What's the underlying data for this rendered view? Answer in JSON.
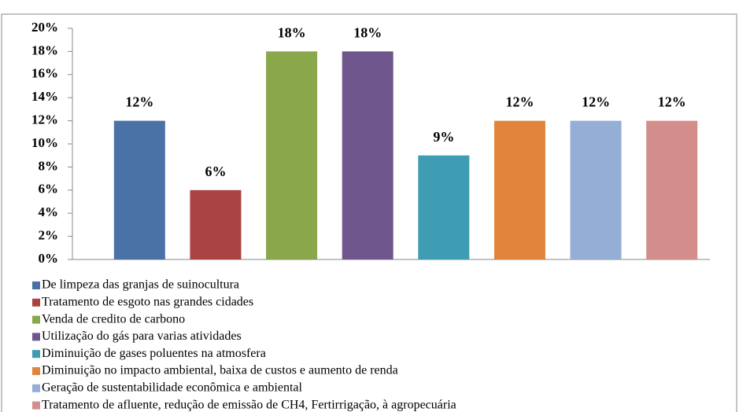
{
  "chart_data": {
    "type": "bar",
    "categories": [
      "De limpeza das granjas de  suinocultura",
      "Tratamento de esgoto nas  grandes cidades",
      "Venda de credito de carbono",
      "Utilização do gás para varias atividades",
      "Diminuição de gases poluentes na atmosfera",
      "Diminuição no impacto ambiental, baixa  de custos e aumento de renda",
      "Geração de sustentabilidade econômica e ambiental",
      "Tratamento de afluente, redução de emissão de CH4, Fertirrigação, à agropecuária"
    ],
    "values": [
      12,
      6,
      18,
      18,
      9,
      12,
      12,
      12
    ],
    "value_labels": [
      "12%",
      "6%",
      "18%",
      "18%",
      "9%",
      "12%",
      "12%",
      "12%"
    ],
    "colors": [
      "#4a72a6",
      "#a94442",
      "#8aa74c",
      "#6f578e",
      "#3f9db3",
      "#e0853b",
      "#94aed6",
      "#d38e8c"
    ],
    "ylim": [
      0,
      20
    ],
    "yticks": [
      {
        "value": 0,
        "label": "0%"
      },
      {
        "value": 2,
        "label": "2%"
      },
      {
        "value": 4,
        "label": "4%"
      },
      {
        "value": 6,
        "label": "6%"
      },
      {
        "value": 8,
        "label": "8%"
      },
      {
        "value": 10,
        "label": "10%"
      },
      {
        "value": 12,
        "label": "12%"
      },
      {
        "value": 14,
        "label": "14%"
      },
      {
        "value": 16,
        "label": "16%"
      },
      {
        "value": 18,
        "label": "18%"
      },
      {
        "value": 20,
        "label": "20%"
      }
    ],
    "legend": "bottom"
  }
}
